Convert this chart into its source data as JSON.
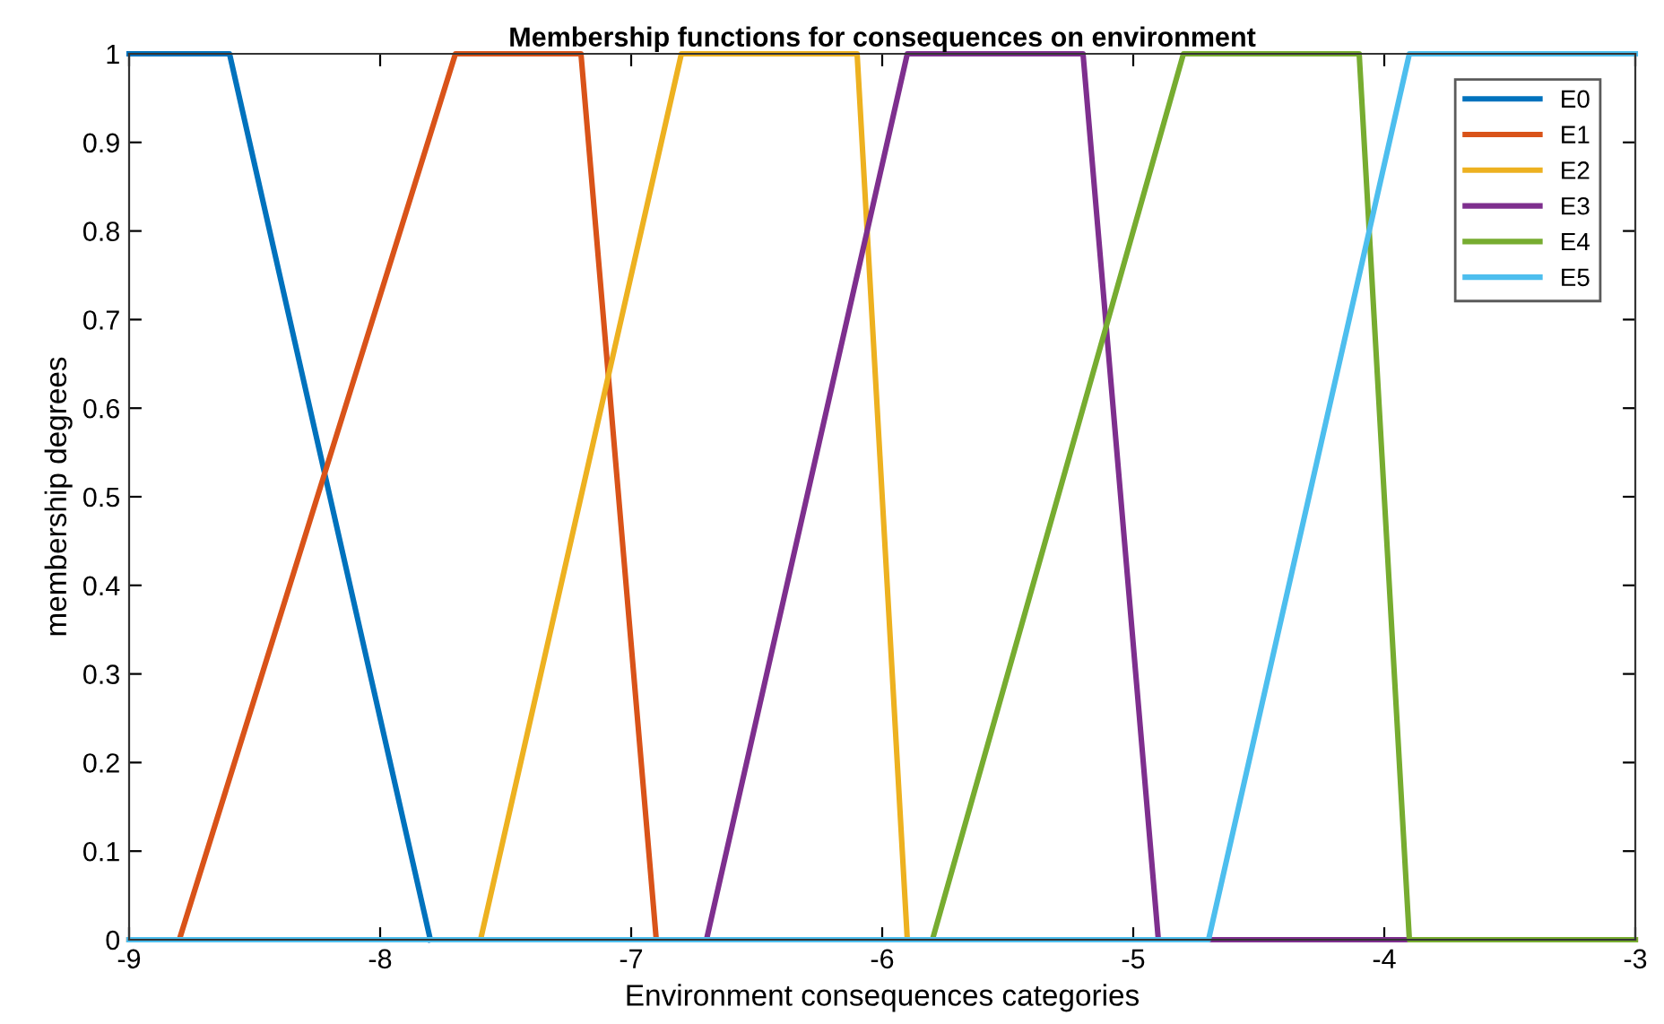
{
  "chart_data": {
    "type": "line",
    "title": "Membership functions for consequences on environment",
    "xlabel": "Environment consequences categories",
    "ylabel": "membership degrees",
    "xlim": [
      -9,
      -3
    ],
    "xticks": [
      -9,
      -8,
      -7,
      -6,
      -5,
      -4,
      -3
    ],
    "ylim": [
      0,
      1
    ],
    "yticks": [
      0,
      0.1,
      0.2,
      0.3,
      0.4,
      0.5,
      0.6,
      0.7,
      0.8,
      0.9,
      1
    ],
    "grid": false,
    "legend": "top right",
    "marker": "none",
    "line_style": "solid",
    "series": [
      {
        "name": "E0",
        "color": "#0072bd",
        "x": [
          -9,
          -8.6,
          -7.8
        ],
        "values": [
          1,
          1,
          0
        ]
      },
      {
        "name": "E1",
        "color": "#d95319",
        "x": [
          -9,
          -8.8,
          -7.7,
          -7.2,
          -6.9,
          -3
        ],
        "values": [
          0,
          0,
          1,
          1,
          0,
          0
        ]
      },
      {
        "name": "E2",
        "color": "#edb120",
        "x": [
          -9,
          -7.6,
          -6.8,
          -6.1,
          -5.9,
          -3
        ],
        "values": [
          0,
          0,
          1,
          1,
          0,
          0
        ]
      },
      {
        "name": "E3",
        "color": "#7e2f8e",
        "x": [
          -9,
          -6.7,
          -5.9,
          -5.2,
          -4.9,
          -3
        ],
        "values": [
          0,
          0,
          1,
          1,
          0,
          0
        ]
      },
      {
        "name": "E4",
        "color": "#77ac30",
        "x": [
          -9,
          -5.8,
          -4.8,
          -4.1,
          -3.9,
          -3
        ],
        "values": [
          0,
          0,
          1,
          1,
          0,
          0
        ]
      },
      {
        "name": "E5",
        "color": "#4dbeee",
        "x": [
          -9,
          -4.7,
          -3.9,
          -3
        ],
        "values": [
          0,
          0,
          1,
          1
        ]
      }
    ]
  }
}
